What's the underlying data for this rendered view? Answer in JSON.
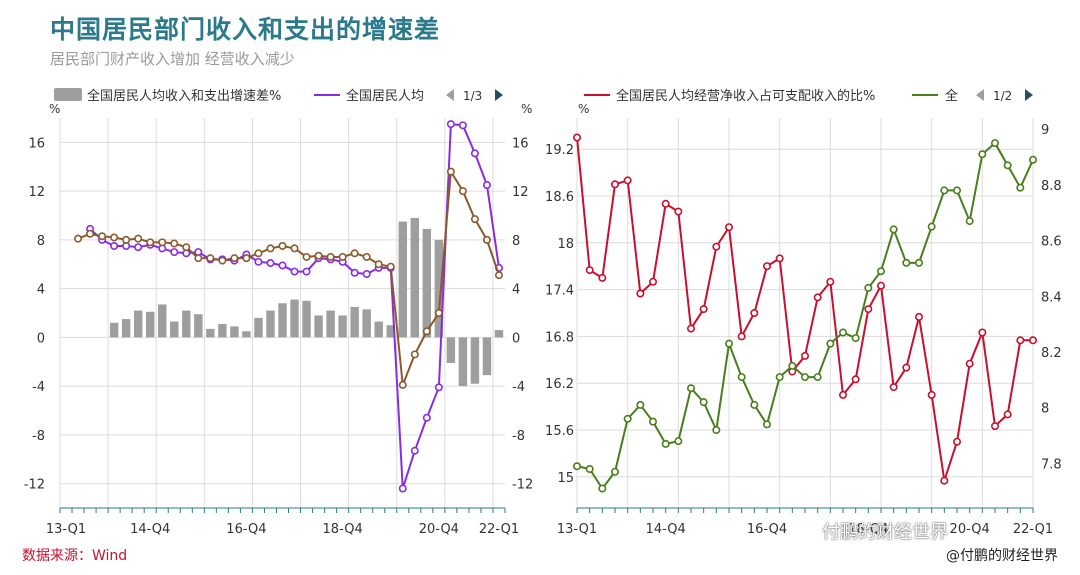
{
  "title": "中国居民部门收入和支出的增速差",
  "subtitle": "居民部门财产收入增加 经营收入减少",
  "source": "数据来源：Wind",
  "credit": "@付鹏的财经世界",
  "watermark": "付鹏的财经世界",
  "colors": {
    "bar": "#9e9e9e",
    "purple": "#8a2be2",
    "brown": "#8b5a2b",
    "red": "#c8102e",
    "green": "#4a7d1c",
    "teal": "#2a7a8c",
    "grid": "#dcdcdc"
  },
  "chart_data": [
    {
      "type": "bar+line",
      "legend": {
        "items": [
          "全国居民人均收入和支出增速差%",
          "全国居民人均"
        ],
        "page": "1/3"
      },
      "yunit_left": "%",
      "yunit_right": "%",
      "ylim": [
        -14,
        18
      ],
      "yticks": [
        -12,
        -8,
        -4,
        0,
        4,
        8,
        12,
        16
      ],
      "xtick_labels": [
        "13-Q1",
        "14-Q4",
        "16-Q4",
        "18-Q4",
        "20-Q4",
        "22-Q1"
      ],
      "x": [
        "13-Q1",
        "13-Q2",
        "13-Q3",
        "13-Q4",
        "14-Q1",
        "14-Q2",
        "14-Q3",
        "14-Q4",
        "15-Q1",
        "15-Q2",
        "15-Q3",
        "15-Q4",
        "16-Q1",
        "16-Q2",
        "16-Q3",
        "16-Q4",
        "17-Q1",
        "17-Q2",
        "17-Q3",
        "17-Q4",
        "18-Q1",
        "18-Q2",
        "18-Q3",
        "18-Q4",
        "19-Q1",
        "19-Q2",
        "19-Q3",
        "19-Q4",
        "20-Q1",
        "20-Q2",
        "20-Q3",
        "20-Q4",
        "21-Q1",
        "21-Q2",
        "21-Q3",
        "21-Q4",
        "22-Q1"
      ],
      "bars": [
        null,
        null,
        null,
        null,
        1.2,
        1.5,
        2.2,
        2.1,
        2.7,
        1.3,
        2.2,
        1.9,
        0.7,
        1.1,
        0.9,
        0.5,
        1.6,
        2.2,
        2.8,
        3.1,
        3.0,
        1.8,
        2.2,
        1.8,
        2.5,
        2.3,
        1.3,
        1.0,
        9.5,
        9.8,
        8.9,
        8.0,
        -2.1,
        -4.0,
        -3.8,
        -3.1,
        0.6
      ],
      "series": [
        {
          "name": "全国居民人均",
          "values": [
            null,
            null,
            8.9,
            8.0,
            7.5,
            7.5,
            7.4,
            7.6,
            7.3,
            7.0,
            6.9,
            7.0,
            6.4,
            6.4,
            6.3,
            6.8,
            6.2,
            6.1,
            5.9,
            5.4,
            5.4,
            6.5,
            6.4,
            6.2,
            5.3,
            5.2,
            5.7,
            5.7,
            -12.4,
            -9.3,
            -6.6,
            -4.1,
            17.5,
            17.4,
            15.1,
            12.5,
            5.7
          ]
        },
        {
          "name": "",
          "values": [
            null,
            8.1,
            8.5,
            8.3,
            8.2,
            8.0,
            8.1,
            7.8,
            7.8,
            7.7,
            7.4,
            6.5,
            6.5,
            6.3,
            6.5,
            6.5,
            6.9,
            7.3,
            7.5,
            7.3,
            6.6,
            6.7,
            6.6,
            6.6,
            6.9,
            6.6,
            6.0,
            5.8,
            -3.9,
            -1.4,
            0.5,
            2.0,
            13.6,
            12.0,
            9.7,
            8.0,
            5.1
          ]
        }
      ]
    },
    {
      "type": "line",
      "legend": {
        "items": [
          "全国居民人均经营净收入占可支配收入的比%",
          "全"
        ],
        "page": "1/2"
      },
      "yunit_left": "%",
      "ylim_left": [
        14.6,
        19.6
      ],
      "yticks_left": [
        15,
        15.6,
        16.2,
        16.8,
        17.4,
        18,
        18.6,
        19.2
      ],
      "ylim_right": [
        7.64,
        9.04
      ],
      "yticks_right": [
        7.8,
        8,
        8.2,
        8.4,
        8.6,
        8.8,
        9
      ],
      "xtick_labels": [
        "13-Q1",
        "14-Q4",
        "16-Q4",
        "18-Q4",
        "20-Q4",
        "22-Q1"
      ],
      "series": [
        {
          "name": "全国居民人均经营净收入占可支配收入的比%",
          "axis": "left",
          "values": [
            19.35,
            17.65,
            17.55,
            18.75,
            18.8,
            17.35,
            17.5,
            18.5,
            18.4,
            16.9,
            17.15,
            17.95,
            18.2,
            16.8,
            17.1,
            17.7,
            17.8,
            16.35,
            16.55,
            17.3,
            17.5,
            16.05,
            16.25,
            17.15,
            17.45,
            16.15,
            16.4,
            17.05,
            16.05,
            14.95,
            15.45,
            16.45,
            16.85,
            15.65,
            15.8,
            16.75,
            16.75
          ]
        },
        {
          "name": "全",
          "axis": "right",
          "values": [
            7.79,
            7.78,
            7.71,
            7.77,
            7.96,
            8.01,
            7.95,
            7.87,
            7.88,
            8.07,
            8.02,
            7.92,
            8.23,
            8.11,
            8.01,
            7.94,
            8.11,
            8.15,
            8.11,
            8.11,
            8.23,
            8.27,
            8.25,
            8.43,
            8.49,
            8.64,
            8.52,
            8.52,
            8.65,
            8.78,
            8.78,
            8.67,
            8.91,
            8.95,
            8.87,
            8.79,
            8.89
          ]
        }
      ]
    }
  ]
}
